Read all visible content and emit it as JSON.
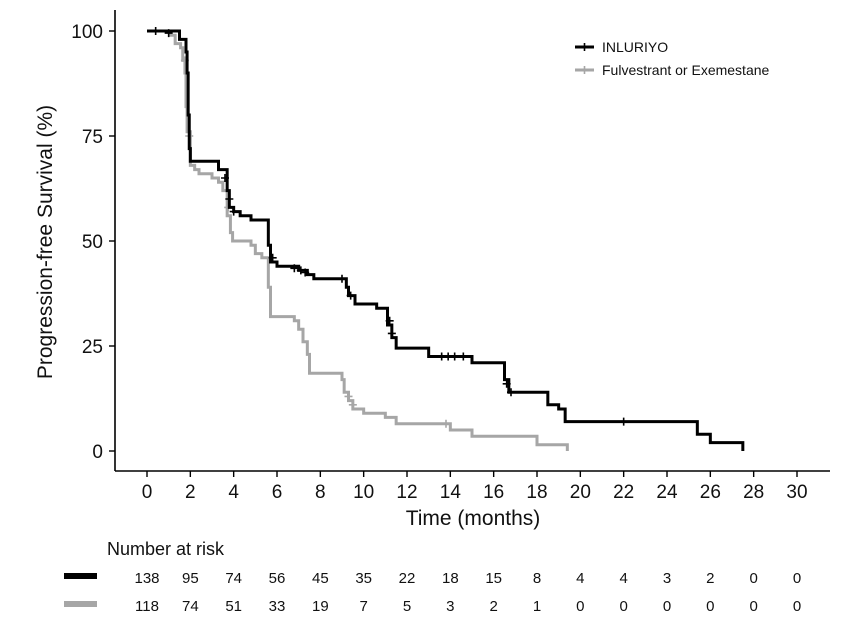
{
  "chart_data": {
    "type": "line",
    "subtype": "kaplan-meier",
    "title": "",
    "xlabel": "Time (months)",
    "ylabel": "Progression-free Survival (%)",
    "xlim": [
      0,
      30
    ],
    "ylim": [
      0,
      100
    ],
    "xticks": [
      0,
      2,
      4,
      6,
      8,
      10,
      12,
      14,
      16,
      18,
      20,
      22,
      24,
      26,
      28,
      30
    ],
    "yticks": [
      0,
      25,
      50,
      75,
      100
    ],
    "grid": false,
    "legend_position": "top-right",
    "series": [
      {
        "name": "INLURIYO",
        "color": "#000000",
        "steps": [
          [
            0,
            100
          ],
          [
            1.5,
            98
          ],
          [
            1.8,
            95
          ],
          [
            1.85,
            90
          ],
          [
            1.9,
            80
          ],
          [
            1.95,
            72
          ],
          [
            2.0,
            69
          ],
          [
            3.3,
            67
          ],
          [
            3.7,
            62
          ],
          [
            3.8,
            58
          ],
          [
            4.0,
            57
          ],
          [
            4.3,
            56
          ],
          [
            4.8,
            55
          ],
          [
            5.6,
            49
          ],
          [
            5.7,
            45
          ],
          [
            6.0,
            44
          ],
          [
            7.0,
            43
          ],
          [
            7.4,
            42
          ],
          [
            7.7,
            41
          ],
          [
            9.2,
            39
          ],
          [
            9.3,
            37
          ],
          [
            9.6,
            35
          ],
          [
            10.6,
            34
          ],
          [
            11.1,
            30
          ],
          [
            11.3,
            27
          ],
          [
            11.5,
            24.5
          ],
          [
            13.0,
            22.5
          ],
          [
            15.0,
            21
          ],
          [
            16.5,
            17
          ],
          [
            16.7,
            14
          ],
          [
            18.5,
            11
          ],
          [
            19.0,
            10
          ],
          [
            19.3,
            7
          ],
          [
            25.4,
            4
          ],
          [
            26.0,
            2
          ],
          [
            27.5,
            0
          ]
        ],
        "end_time": 27.5,
        "censor_points": [
          [
            0.4,
            100
          ],
          [
            1.0,
            99.5
          ],
          [
            3.6,
            65
          ],
          [
            3.8,
            60
          ],
          [
            4.0,
            57
          ],
          [
            5.8,
            46
          ],
          [
            6.8,
            43.5
          ],
          [
            7.1,
            43
          ],
          [
            7.3,
            42.5
          ],
          [
            9.0,
            41
          ],
          [
            9.4,
            37
          ],
          [
            11.2,
            31
          ],
          [
            11.3,
            28
          ],
          [
            13.6,
            22.5
          ],
          [
            13.9,
            22.5
          ],
          [
            14.2,
            22.5
          ],
          [
            14.6,
            22.5
          ],
          [
            16.6,
            16
          ],
          [
            16.8,
            14
          ],
          [
            22.0,
            7
          ]
        ]
      },
      {
        "name": "Fulvestrant or Exemestane",
        "color": "#a6a6a6",
        "steps": [
          [
            0,
            100
          ],
          [
            1.1,
            99
          ],
          [
            1.3,
            97
          ],
          [
            1.55,
            96
          ],
          [
            1.65,
            93
          ],
          [
            1.75,
            90
          ],
          [
            1.8,
            82
          ],
          [
            1.85,
            76
          ],
          [
            2.0,
            68
          ],
          [
            2.2,
            67
          ],
          [
            2.4,
            66
          ],
          [
            3.0,
            65
          ],
          [
            3.3,
            64
          ],
          [
            3.5,
            62
          ],
          [
            3.7,
            56
          ],
          [
            3.85,
            52
          ],
          [
            3.95,
            50
          ],
          [
            4.8,
            49
          ],
          [
            5.0,
            47
          ],
          [
            5.3,
            46
          ],
          [
            5.6,
            39
          ],
          [
            5.7,
            32
          ],
          [
            6.8,
            31
          ],
          [
            7.0,
            29
          ],
          [
            7.2,
            26
          ],
          [
            7.4,
            23
          ],
          [
            7.5,
            18.5
          ],
          [
            9.0,
            17
          ],
          [
            9.1,
            14
          ],
          [
            9.3,
            12
          ],
          [
            9.5,
            10
          ],
          [
            10.0,
            9
          ],
          [
            11.0,
            8
          ],
          [
            11.5,
            6.5
          ],
          [
            14.0,
            5
          ],
          [
            15.0,
            3.5
          ],
          [
            18.0,
            1.5
          ],
          [
            19.4,
            0
          ]
        ],
        "end_time": 19.4,
        "censor_points": [
          [
            1.75,
            93
          ],
          [
            1.95,
            75
          ],
          [
            3.75,
            58
          ],
          [
            9.3,
            13
          ],
          [
            9.5,
            11
          ],
          [
            13.8,
            6.5
          ]
        ]
      }
    ],
    "number_at_risk": {
      "title": "Number at risk",
      "times": [
        0,
        2,
        4,
        6,
        8,
        10,
        12,
        14,
        16,
        18,
        20,
        22,
        24,
        26,
        28,
        30
      ],
      "rows": [
        {
          "name": "INLURIYO",
          "color": "#000000",
          "values": [
            "138",
            "95",
            "74",
            "56",
            "45",
            "35",
            "22",
            "18",
            "15",
            "8",
            "4",
            "4",
            "3",
            "2",
            "0",
            "0"
          ]
        },
        {
          "name": "Fulvestrant or Exemestane",
          "color": "#a6a6a6",
          "values": [
            "118",
            "74",
            "51",
            "33",
            "19",
            "7",
            "5",
            "3",
            "2",
            "1",
            "0",
            "0",
            "0",
            "0",
            "0",
            "0"
          ]
        }
      ]
    }
  }
}
